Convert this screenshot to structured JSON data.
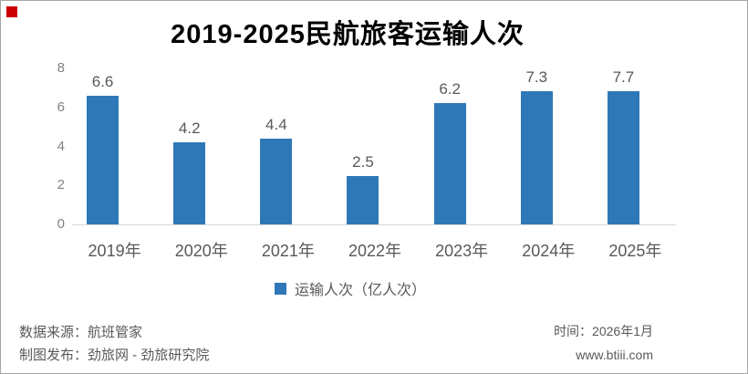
{
  "page": {
    "background": "#ffffff",
    "border_color": "#a6a6a6"
  },
  "accent_marker": {
    "color": "#cc0000"
  },
  "chart_data": {
    "type": "bar",
    "title": "2019-2025民航旅客运输人次",
    "categories": [
      "2019年",
      "2020年",
      "2021年",
      "2022年",
      "2023年",
      "2024年",
      "2025年"
    ],
    "values": [
      6.6,
      4.2,
      4.4,
      2.5,
      6.2,
      7.3,
      7.7
    ],
    "series": [
      {
        "name": "运输人次（亿人次）",
        "values": [
          6.6,
          4.2,
          4.4,
          2.5,
          6.2,
          7.3,
          7.7
        ]
      }
    ],
    "xlabel": "",
    "ylabel": "",
    "ylim": [
      0,
      8
    ],
    "yticks": [
      0,
      2,
      4,
      6,
      8
    ],
    "grid": false,
    "legend_position": "bottom",
    "bar_color": "#2E78B8",
    "value_label_color": "#595959",
    "tick_label_color": "#808080",
    "axis_line_color": "#d9d9d9"
  },
  "legend": {
    "label": "运输人次（亿人次）",
    "swatch_color": "#2E78B8"
  },
  "footer": {
    "source_line": "数据来源：航班管家",
    "publisher_line": "制图发布：劲旅网 - 劲旅研究院",
    "time_line": "时间：2026年1月",
    "website": "www.btiii.com"
  }
}
